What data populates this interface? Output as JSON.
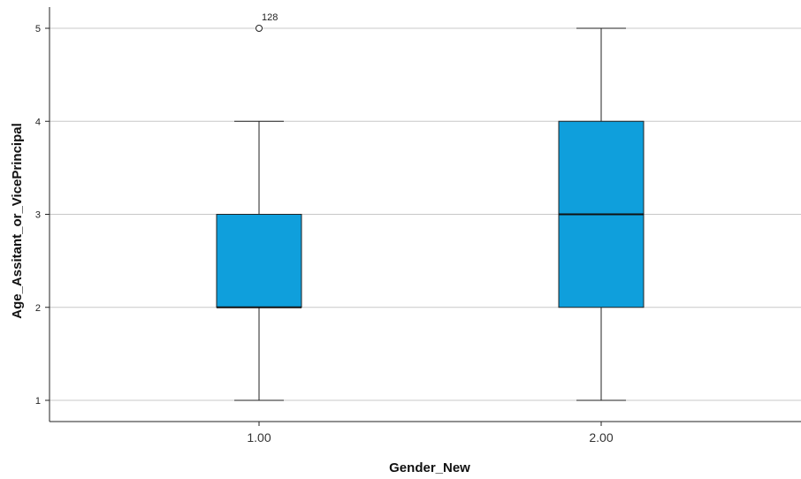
{
  "chart_data": {
    "type": "box",
    "xlabel": "Gender_New",
    "ylabel": "Age_Assitant_or_VicePrincipal",
    "ylim": [
      0.8,
      5.2
    ],
    "yticks": [
      1,
      2,
      3,
      4,
      5
    ],
    "grid": true,
    "box_color": "#0f9fdc",
    "categories": [
      "1.00",
      "2.00"
    ],
    "boxes": [
      {
        "category": "1.00",
        "min": 1,
        "q1": 2,
        "median": 2,
        "q3": 3,
        "max": 4,
        "outliers": [
          {
            "value": 5,
            "label": "128"
          }
        ]
      },
      {
        "category": "2.00",
        "min": 1,
        "q1": 2,
        "median": 3,
        "q3": 4,
        "max": 5,
        "outliers": []
      }
    ]
  }
}
